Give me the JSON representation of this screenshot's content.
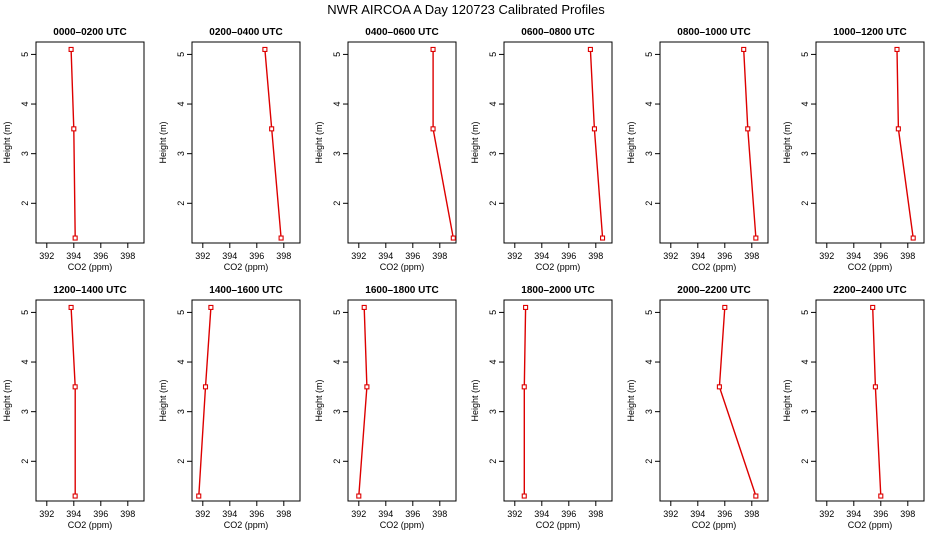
{
  "figure": {
    "title": "NWR AIRCOA A  Day 120723  Calibrated Profiles"
  },
  "colors": {
    "series": "#dd0000",
    "axis": "#000000"
  },
  "chart_data": [
    {
      "type": "line",
      "title": "0000–0200 UTC",
      "xlabel": "CO2 (ppm)",
      "ylabel": "Height (m)",
      "xlim": [
        391.2,
        399.2
      ],
      "ylim": [
        1.2,
        5.25
      ],
      "xticks": [
        "392",
        "394",
        "396",
        "398"
      ],
      "yticks": [
        "2",
        "3",
        "4",
        "5"
      ],
      "points": [
        {
          "x": 393.8,
          "y": 5.1
        },
        {
          "x": 394.0,
          "y": 3.5
        },
        {
          "x": 394.1,
          "y": 1.3
        }
      ]
    },
    {
      "type": "line",
      "title": "0200–0400 UTC",
      "xlabel": "CO2 (ppm)",
      "ylabel": "Height (m)",
      "xlim": [
        391.2,
        399.2
      ],
      "ylim": [
        1.2,
        5.25
      ],
      "xticks": [
        "392",
        "394",
        "396",
        "398"
      ],
      "yticks": [
        "2",
        "3",
        "4",
        "5"
      ],
      "points": [
        {
          "x": 396.6,
          "y": 5.1
        },
        {
          "x": 397.1,
          "y": 3.5
        },
        {
          "x": 397.8,
          "y": 1.3
        }
      ]
    },
    {
      "type": "line",
      "title": "0400–0600 UTC",
      "xlabel": "CO2 (ppm)",
      "ylabel": "Height (m)",
      "xlim": [
        391.2,
        399.2
      ],
      "ylim": [
        1.2,
        5.25
      ],
      "xticks": [
        "392",
        "394",
        "396",
        "398"
      ],
      "yticks": [
        "2",
        "3",
        "4",
        "5"
      ],
      "points": [
        {
          "x": 397.5,
          "y": 5.1
        },
        {
          "x": 397.5,
          "y": 3.5
        },
        {
          "x": 399.0,
          "y": 1.3
        }
      ]
    },
    {
      "type": "line",
      "title": "0600–0800 UTC",
      "xlabel": "CO2 (ppm)",
      "ylabel": "Height (m)",
      "xlim": [
        391.2,
        399.2
      ],
      "ylim": [
        1.2,
        5.25
      ],
      "xticks": [
        "392",
        "394",
        "396",
        "398"
      ],
      "yticks": [
        "2",
        "3",
        "4",
        "5"
      ],
      "points": [
        {
          "x": 397.6,
          "y": 5.1
        },
        {
          "x": 397.9,
          "y": 3.5
        },
        {
          "x": 398.5,
          "y": 1.3
        }
      ]
    },
    {
      "type": "line",
      "title": "0800–1000 UTC",
      "xlabel": "CO2 (ppm)",
      "ylabel": "Height (m)",
      "xlim": [
        391.2,
        399.2
      ],
      "ylim": [
        1.2,
        5.25
      ],
      "xticks": [
        "392",
        "394",
        "396",
        "398"
      ],
      "yticks": [
        "2",
        "3",
        "4",
        "5"
      ],
      "points": [
        {
          "x": 397.4,
          "y": 5.1
        },
        {
          "x": 397.7,
          "y": 3.5
        },
        {
          "x": 398.3,
          "y": 1.3
        }
      ]
    },
    {
      "type": "line",
      "title": "1000–1200 UTC",
      "xlabel": "CO2 (ppm)",
      "ylabel": "Height (m)",
      "xlim": [
        391.2,
        399.2
      ],
      "ylim": [
        1.2,
        5.25
      ],
      "xticks": [
        "392",
        "394",
        "396",
        "398"
      ],
      "yticks": [
        "2",
        "3",
        "4",
        "5"
      ],
      "points": [
        {
          "x": 397.2,
          "y": 5.1
        },
        {
          "x": 397.3,
          "y": 3.5
        },
        {
          "x": 398.4,
          "y": 1.3
        }
      ]
    },
    {
      "type": "line",
      "title": "1200–1400 UTC",
      "xlabel": "CO2 (ppm)",
      "ylabel": "Height (m)",
      "xlim": [
        391.2,
        399.2
      ],
      "ylim": [
        1.2,
        5.25
      ],
      "xticks": [
        "392",
        "394",
        "396",
        "398"
      ],
      "yticks": [
        "2",
        "3",
        "4",
        "5"
      ],
      "points": [
        {
          "x": 393.8,
          "y": 5.1
        },
        {
          "x": 394.1,
          "y": 3.5
        },
        {
          "x": 394.1,
          "y": 1.3
        }
      ]
    },
    {
      "type": "line",
      "title": "1400–1600 UTC",
      "xlabel": "CO2 (ppm)",
      "ylabel": "Height (m)",
      "xlim": [
        391.2,
        399.2
      ],
      "ylim": [
        1.2,
        5.25
      ],
      "xticks": [
        "392",
        "394",
        "396",
        "398"
      ],
      "yticks": [
        "2",
        "3",
        "4",
        "5"
      ],
      "points": [
        {
          "x": 392.6,
          "y": 5.1
        },
        {
          "x": 392.2,
          "y": 3.5
        },
        {
          "x": 391.7,
          "y": 1.3
        }
      ]
    },
    {
      "type": "line",
      "title": "1600–1800 UTC",
      "xlabel": "CO2 (ppm)",
      "ylabel": "Height (m)",
      "xlim": [
        391.2,
        399.2
      ],
      "ylim": [
        1.2,
        5.25
      ],
      "xticks": [
        "392",
        "394",
        "396",
        "398"
      ],
      "yticks": [
        "2",
        "3",
        "4",
        "5"
      ],
      "points": [
        {
          "x": 392.4,
          "y": 5.1
        },
        {
          "x": 392.6,
          "y": 3.5
        },
        {
          "x": 392.0,
          "y": 1.3
        }
      ]
    },
    {
      "type": "line",
      "title": "1800–2000 UTC",
      "xlabel": "CO2 (ppm)",
      "ylabel": "Height (m)",
      "xlim": [
        391.2,
        399.2
      ],
      "ylim": [
        1.2,
        5.25
      ],
      "xticks": [
        "392",
        "394",
        "396",
        "398"
      ],
      "yticks": [
        "2",
        "3",
        "4",
        "5"
      ],
      "points": [
        {
          "x": 392.8,
          "y": 5.1
        },
        {
          "x": 392.7,
          "y": 3.5
        },
        {
          "x": 392.7,
          "y": 1.3
        }
      ]
    },
    {
      "type": "line",
      "title": "2000–2200 UTC",
      "xlabel": "CO2 (ppm)",
      "ylabel": "Height (m)",
      "xlim": [
        391.2,
        399.2
      ],
      "ylim": [
        1.2,
        5.25
      ],
      "xticks": [
        "392",
        "394",
        "396",
        "398"
      ],
      "yticks": [
        "2",
        "3",
        "4",
        "5"
      ],
      "points": [
        {
          "x": 396.0,
          "y": 5.1
        },
        {
          "x": 395.6,
          "y": 3.5
        },
        {
          "x": 398.3,
          "y": 1.3
        }
      ]
    },
    {
      "type": "line",
      "title": "2200–2400 UTC",
      "xlabel": "CO2 (ppm)",
      "ylabel": "Height (m)",
      "xlim": [
        391.2,
        399.2
      ],
      "ylim": [
        1.2,
        5.25
      ],
      "xticks": [
        "392",
        "394",
        "396",
        "398"
      ],
      "yticks": [
        "2",
        "3",
        "4",
        "5"
      ],
      "points": [
        {
          "x": 395.4,
          "y": 5.1
        },
        {
          "x": 395.6,
          "y": 3.5
        },
        {
          "x": 396.0,
          "y": 1.3
        }
      ]
    }
  ]
}
